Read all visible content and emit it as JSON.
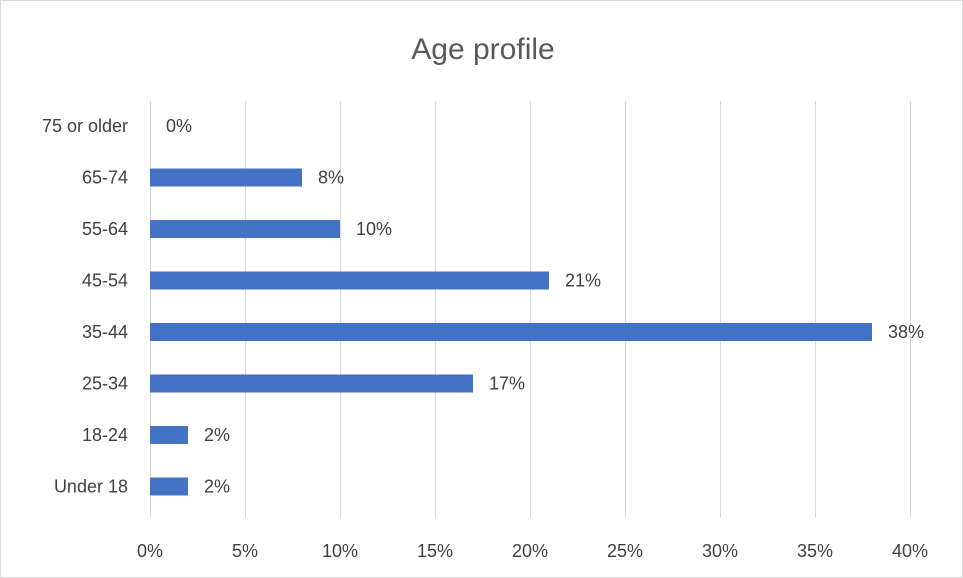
{
  "chart_data": {
    "type": "bar",
    "orientation": "horizontal",
    "title": "Age profile",
    "xlabel": "",
    "ylabel": "",
    "categories": [
      "Under 18",
      "18-24",
      "25-34",
      "35-44",
      "45-54",
      "55-64",
      "65-74",
      "75 or older"
    ],
    "values": [
      2,
      2,
      17,
      38,
      21,
      10,
      8,
      0
    ],
    "data_labels": [
      "2%",
      "2%",
      "17%",
      "38%",
      "21%",
      "10%",
      "8%",
      "0%"
    ],
    "xlim": [
      0,
      40
    ],
    "x_ticks": [
      0,
      5,
      10,
      15,
      20,
      25,
      30,
      35,
      40
    ],
    "x_tick_labels": [
      "0%",
      "5%",
      "10%",
      "15%",
      "20%",
      "25%",
      "30%",
      "35%",
      "40%"
    ],
    "grid": "vertical",
    "legend": "none",
    "bar_color": "#4472c4"
  }
}
